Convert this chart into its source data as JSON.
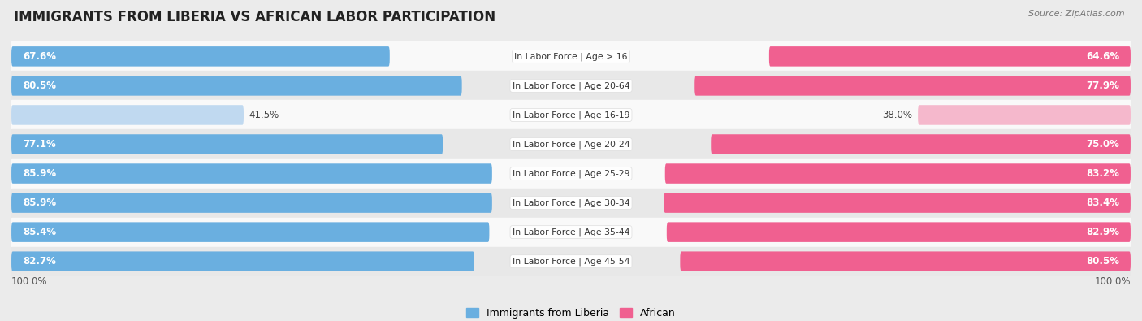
{
  "title": "IMMIGRANTS FROM LIBERIA VS AFRICAN LABOR PARTICIPATION",
  "source": "Source: ZipAtlas.com",
  "categories": [
    "In Labor Force | Age > 16",
    "In Labor Force | Age 20-64",
    "In Labor Force | Age 16-19",
    "In Labor Force | Age 20-24",
    "In Labor Force | Age 25-29",
    "In Labor Force | Age 30-34",
    "In Labor Force | Age 35-44",
    "In Labor Force | Age 45-54"
  ],
  "liberia_values": [
    67.6,
    80.5,
    41.5,
    77.1,
    85.9,
    85.9,
    85.4,
    82.7
  ],
  "african_values": [
    64.6,
    77.9,
    38.0,
    75.0,
    83.2,
    83.4,
    82.9,
    80.5
  ],
  "liberia_color_strong": "#6aafe0",
  "liberia_color_light": "#c0d9f0",
  "african_color_strong": "#f06090",
  "african_color_light": "#f5b8cc",
  "threshold": 60,
  "bar_height": 0.68,
  "bg_color": "#ebebeb",
  "row_bg_light": "#f9f9f9",
  "row_bg_dark": "#e8e8e8",
  "label_fontsize": 8.5,
  "title_fontsize": 12,
  "source_fontsize": 8,
  "category_fontsize": 7.8,
  "xlim": 100.0,
  "legend_labels": [
    "Immigrants from Liberia",
    "African"
  ]
}
